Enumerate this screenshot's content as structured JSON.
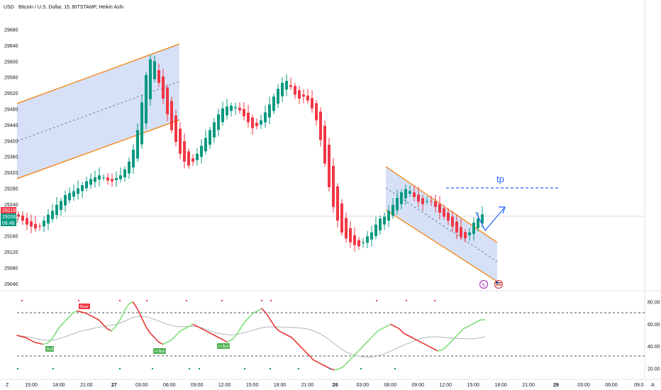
{
  "header": {
    "currency": "USD",
    "title": "Bitcoin / U.S. Dollar, 15, BITSTAMP, Heikin Ashi"
  },
  "price_axis": {
    "ticks": [
      "29680",
      "29640",
      "29600",
      "29560",
      "29520",
      "29480",
      "29440",
      "29400",
      "29360",
      "29320",
      "29280",
      "29240",
      "29200",
      "29160",
      "29120",
      "29080",
      "29040"
    ],
    "labels": [
      {
        "text": "29216",
        "color": "#f23645"
      },
      {
        "text": "29206",
        "color": "#089981"
      },
      {
        "text": "06:48",
        "color": "#089981"
      }
    ]
  },
  "time_axis": {
    "labels": [
      "15:00",
      "18:00",
      "21:00",
      "27",
      "03:00",
      "06:00",
      "09:00",
      "12:00",
      "15:00",
      "18:00",
      "21:00",
      "28",
      "03:00",
      "06:00",
      "09:00",
      "12:00",
      "15:00",
      "18:00",
      "21:00",
      "29",
      "03:00",
      "06:00",
      "09:0"
    ],
    "bold": [
      "27",
      "28",
      "29"
    ]
  },
  "indicator_axis": {
    "ticks": [
      "80.00",
      "60.00",
      "40.00",
      "20.00"
    ]
  },
  "annotations": {
    "tp_label": "tp"
  },
  "indicator_labels": [
    {
      "text": "Bear",
      "color": "#f23645"
    },
    {
      "text": "Bull",
      "color": "#4caf50"
    },
    {
      "text": "H Bull",
      "color": "#4caf50"
    },
    {
      "text": "H Bull",
      "color": "#4caf50"
    }
  ],
  "corner_buttons": {
    "left": "Z",
    "right": "A"
  },
  "colors": {
    "bull": "#089981",
    "bear": "#f23645",
    "channel_fill": "#cfdcf7",
    "channel_border": "#f57c00",
    "tp_line": "#2962ff",
    "osc_up": "#7ee07a",
    "osc_down": "#e53935"
  },
  "chart_data": [
    {
      "type": "candlestick",
      "title": "Bitcoin / U.S. Dollar, 15, BITSTAMP, Heikin Ashi",
      "ylim": [
        29030,
        29700
      ],
      "close": [
        29200,
        29190,
        29180,
        29175,
        29170,
        29175,
        29190,
        29205,
        29215,
        29230,
        29240,
        29255,
        29260,
        29265,
        29272,
        29280,
        29290,
        29296,
        29300,
        29305,
        29300,
        29292,
        29290,
        29298,
        29305,
        29320,
        29340,
        29370,
        29420,
        29490,
        29560,
        29600,
        29595,
        29540,
        29500,
        29460,
        29420,
        29390,
        29360,
        29340,
        29330,
        29340,
        29360,
        29380,
        29400,
        29420,
        29440,
        29460,
        29475,
        29480,
        29482,
        29478,
        29470,
        29455,
        29440,
        29425,
        29430,
        29445,
        29465,
        29485,
        29505,
        29525,
        29540,
        29545,
        29530,
        29510,
        29500,
        29505,
        29495,
        29475,
        29445,
        29395,
        29335,
        29275,
        29225,
        29190,
        29160,
        29145,
        29135,
        29128,
        29125,
        29135,
        29150,
        29160,
        29180,
        29195,
        29200,
        29215,
        29230,
        29248,
        29262,
        29270,
        29265,
        29250,
        29238,
        29232,
        29240,
        29238,
        29225,
        29210,
        29200,
        29190,
        29175,
        29160,
        29148,
        29145,
        29160,
        29185,
        29195,
        29206
      ],
      "open_hint": "each candle opens at the midpoint of the previous candle's open and close (Heikin Ashi)"
    },
    {
      "type": "line",
      "title": "",
      "ylim": [
        15,
        85
      ],
      "values": [
        50,
        49,
        48,
        46,
        44,
        43,
        42,
        43,
        46,
        52,
        58,
        62,
        66,
        70,
        72,
        71,
        70,
        68,
        66,
        64,
        60,
        56,
        54,
        58,
        64,
        72,
        78,
        80,
        74,
        66,
        58,
        52,
        48,
        44,
        42,
        44,
        46,
        50,
        54,
        56,
        58,
        60,
        58,
        56,
        54,
        52,
        50,
        48,
        46,
        44,
        46,
        50,
        56,
        62,
        66,
        70,
        72,
        74,
        70,
        64,
        58,
        54,
        52,
        50,
        48,
        44,
        40,
        36,
        32,
        28,
        26,
        24,
        22,
        20,
        19,
        20,
        22,
        26,
        30,
        34,
        38,
        42,
        46,
        50,
        54,
        56,
        58,
        60,
        58,
        56,
        52,
        50,
        48,
        46,
        44,
        42,
        40,
        38,
        36,
        37,
        40,
        44,
        48,
        52,
        56,
        58,
        60,
        62,
        64,
        64
      ]
    }
  ]
}
